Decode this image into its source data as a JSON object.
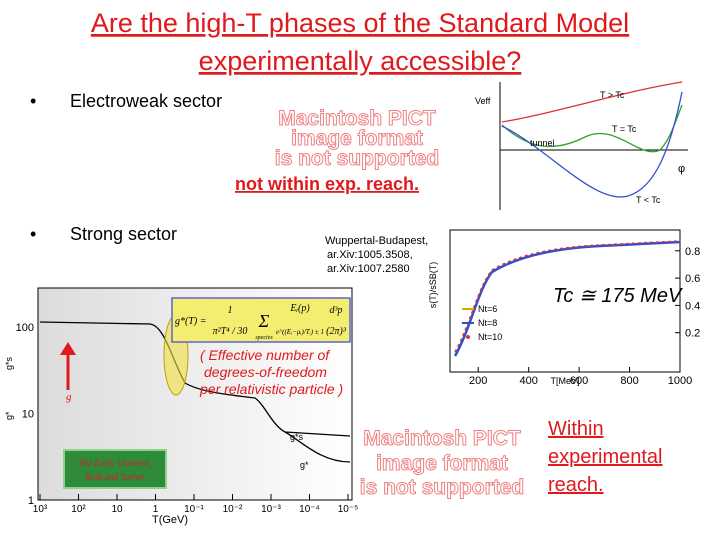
{
  "title": [
    "Are the high-T phases of the Standard Model",
    "experimentally accessible?"
  ],
  "bullets": [
    "Electroweak sector",
    "Strong sector"
  ],
  "placeholder_1": [
    "Macintosh PICT",
    "image format",
    "is not supported"
  ],
  "placeholder_2": [
    "Macintosh PICT",
    "image format",
    "is not supported"
  ],
  "electroweak_plot": {
    "y_label": "Veff",
    "labels": [
      "T > Tc",
      "T = Tc",
      "tunnel",
      "φ",
      "T < Tc"
    ]
  },
  "electroweak_note": "not within exp. reach.",
  "reference": [
    "Wuppertal-Budapest,",
    "ar.Xiv:1005.3508,",
    "ar.Xiv:1007.2580"
  ],
  "lattice_plot": {
    "y_label": "s(T)/sSB(T)",
    "x_label": "T[MeV]",
    "xticks": [
      200,
      400,
      600,
      800,
      1000
    ],
    "yticks": [
      0.8,
      0.6,
      0.4,
      0.2
    ],
    "tc_label": "Tc ≅ 175 MeV",
    "legend": [
      "Nt=6",
      "Nt=8",
      "Nt=10"
    ]
  },
  "dof_plot": {
    "yticks": [
      "100",
      "10",
      "1"
    ],
    "xticks": [
      "10³",
      "10²",
      "10",
      "1",
      "10⁻¹",
      "10⁻²",
      "10⁻³",
      "10⁻⁴",
      "10⁻⁵"
    ],
    "x_label": "T(GeV)",
    "side_labels": [
      "g*s",
      "g*"
    ],
    "curve_labels": [
      "g*s",
      "g*"
    ],
    "arrow_label": "g",
    "formula": [
      "g*(T) =",
      "1",
      "π²T⁴ / 30",
      "Σ",
      "species",
      "Eᵢ(p)",
      "e^((Eᵢ−μᵢ)/Tᵢ) ± 1",
      "d³p",
      "(2π)³"
    ],
    "annotation": [
      "( Effective number of",
      "degrees-of-freedom",
      "per relativistic particle )"
    ],
    "book": [
      "The Early Universe,",
      "Kolb and Turner"
    ]
  },
  "strong_note": [
    "Within",
    "experimental",
    "reach."
  ]
}
